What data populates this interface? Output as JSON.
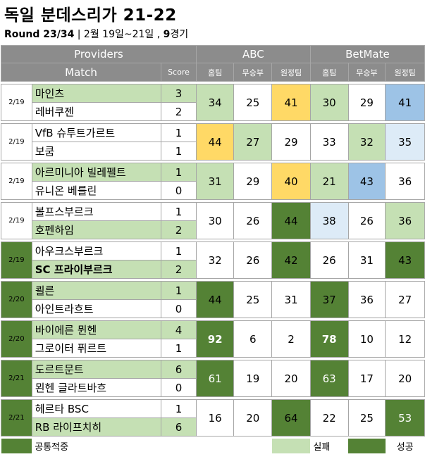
{
  "header": {
    "title": "독일 분데스리가 21-22",
    "round_label": "Round 23/34",
    "round_rest": " | 2월 19일~21일 , ",
    "games_bold": "9",
    "games_suffix": "경기"
  },
  "table": {
    "providers_label": "Providers",
    "match_label": "Match",
    "score_label": "Score",
    "provider_abc": "ABC",
    "provider_betmate": "BetMate",
    "col_home": "홈팀",
    "col_draw": "무승부",
    "col_away": "원정팀"
  },
  "matches": [
    {
      "date": "2/19",
      "home": "마인츠",
      "away": "레버쿠젠",
      "home_score": "3",
      "away_score": "2",
      "abc": [
        "34",
        "25",
        "41"
      ],
      "betmate": [
        "30",
        "29",
        "41"
      ]
    },
    {
      "date": "2/19",
      "home": "VfB 슈투트가르트",
      "away": "보쿰",
      "home_score": "1",
      "away_score": "1",
      "abc": [
        "44",
        "27",
        "29"
      ],
      "betmate": [
        "33",
        "32",
        "35"
      ]
    },
    {
      "date": "2/19",
      "home": "아르미니아 빌레펠트",
      "away": "유니온 베를린",
      "home_score": "1",
      "away_score": "0",
      "abc": [
        "31",
        "29",
        "40"
      ],
      "betmate": [
        "21",
        "43",
        "36"
      ]
    },
    {
      "date": "2/19",
      "home": "볼프스부르크",
      "away": "호펜하임",
      "home_score": "1",
      "away_score": "2",
      "abc": [
        "30",
        "26",
        "44"
      ],
      "betmate": [
        "38",
        "26",
        "36"
      ]
    },
    {
      "date": "2/19",
      "home": "아우크스부르크",
      "away": "SC 프라이부르크",
      "home_score": "1",
      "away_score": "2",
      "abc": [
        "32",
        "26",
        "42"
      ],
      "betmate": [
        "26",
        "31",
        "43"
      ]
    },
    {
      "date": "2/20",
      "home": "쾰른",
      "away": "아인트라흐트",
      "home_score": "1",
      "away_score": "0",
      "abc": [
        "44",
        "25",
        "31"
      ],
      "betmate": [
        "37",
        "36",
        "27"
      ]
    },
    {
      "date": "2/20",
      "home": "바이에른 뮌헨",
      "away": "그로이터 퓌르트",
      "home_score": "4",
      "away_score": "1",
      "abc": [
        "92",
        "6",
        "2"
      ],
      "betmate": [
        "78",
        "10",
        "12"
      ]
    },
    {
      "date": "2/21",
      "home": "도르트문트",
      "away": "묀헨 글라트바흐",
      "home_score": "6",
      "away_score": "0",
      "abc": [
        "61",
        "19",
        "20"
      ],
      "betmate": [
        "63",
        "17",
        "20"
      ]
    },
    {
      "date": "2/21",
      "home": "헤르타 BSC",
      "away": "RB 라이프치히",
      "home_score": "1",
      "away_score": "6",
      "abc": [
        "16",
        "20",
        "64"
      ],
      "betmate": [
        "22",
        "25",
        "53"
      ]
    }
  ],
  "legend": {
    "common": "공통적중",
    "fail": "실패",
    "success": "성공"
  },
  "colors": {
    "header_gray": "#8c8c8c",
    "success_green": "#548235",
    "light_green": "#c5e0b4",
    "yellow": "#ffd966",
    "blue": "#9dc3e6",
    "light_blue": "#ddebf7"
  }
}
